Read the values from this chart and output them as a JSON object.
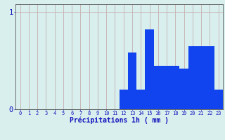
{
  "xlabel": "Précipitations 1h ( mm )",
  "hours": [
    0,
    1,
    2,
    3,
    4,
    5,
    6,
    7,
    8,
    9,
    10,
    11,
    12,
    13,
    14,
    15,
    16,
    17,
    18,
    19,
    20,
    21,
    22,
    23
  ],
  "values": [
    0,
    0,
    0,
    0,
    0,
    0,
    0,
    0,
    0,
    0,
    0,
    0,
    0.2,
    0.58,
    0.2,
    0.82,
    0.45,
    0.45,
    0.45,
    0.42,
    0.65,
    0.65,
    0.65,
    0.2
  ],
  "bar_color": "#1144ee",
  "bg_color": "#d8efee",
  "grid_color": "#c8b8b8",
  "axis_color": "#555555",
  "text_color": "#1111bb",
  "ylim_max": 1.08,
  "ytick_vals": [
    0,
    1
  ],
  "bar_width": 1.0
}
